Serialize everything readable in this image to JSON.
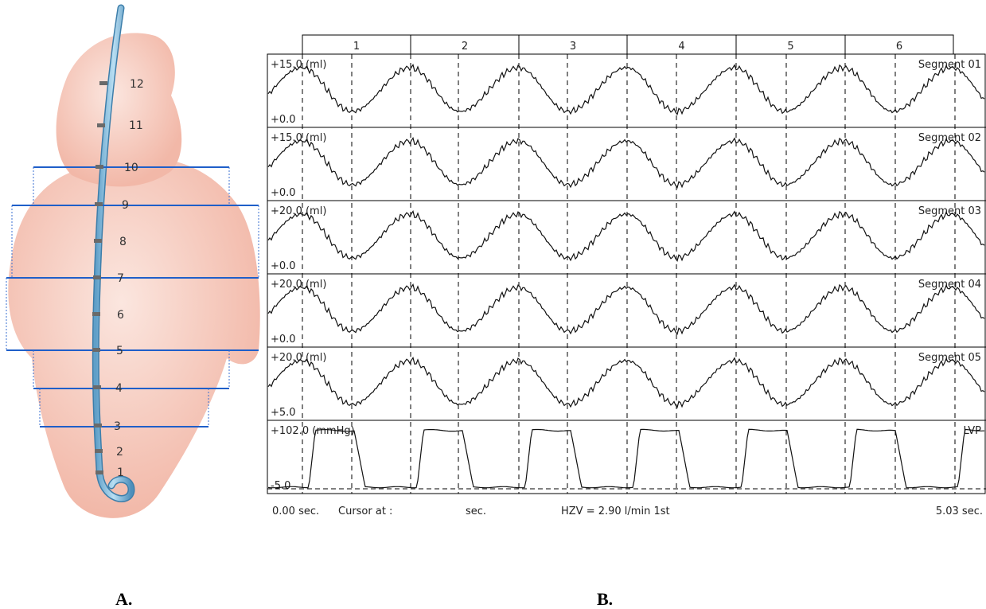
{
  "panel_a": {
    "label": "A.",
    "electrodes": [
      "1",
      "2",
      "3",
      "4",
      "5",
      "6",
      "7",
      "8",
      "9",
      "10",
      "11",
      "12"
    ]
  },
  "panel_b": {
    "label": "B.",
    "beats": [
      "1",
      "2",
      "3",
      "4",
      "5",
      "6"
    ],
    "channels": [
      {
        "top": "+15.0 (ml)",
        "bottom": "+0.0",
        "name": "Segment 01"
      },
      {
        "top": "+15.0 (ml)",
        "bottom": "+0.0",
        "name": "Segment 02"
      },
      {
        "top": "+20.0 (ml)",
        "bottom": "+0.0",
        "name": "Segment 03"
      },
      {
        "top": "+20.0 (ml)",
        "bottom": "+0.0",
        "name": "Segment 04"
      },
      {
        "top": "+20.0 (ml)",
        "bottom": "+5.0",
        "name": "Segment 05"
      },
      {
        "top": "+102.0 (mmHg)",
        "bottom": "-5.0",
        "name": "LVP"
      }
    ],
    "footer": {
      "start": "0.00 sec.",
      "cursor": "Cursor at :",
      "cursor_unit": "sec.",
      "hzv": "HZV = 2.90 l/min 1st",
      "end": "5.03 sec."
    }
  }
}
